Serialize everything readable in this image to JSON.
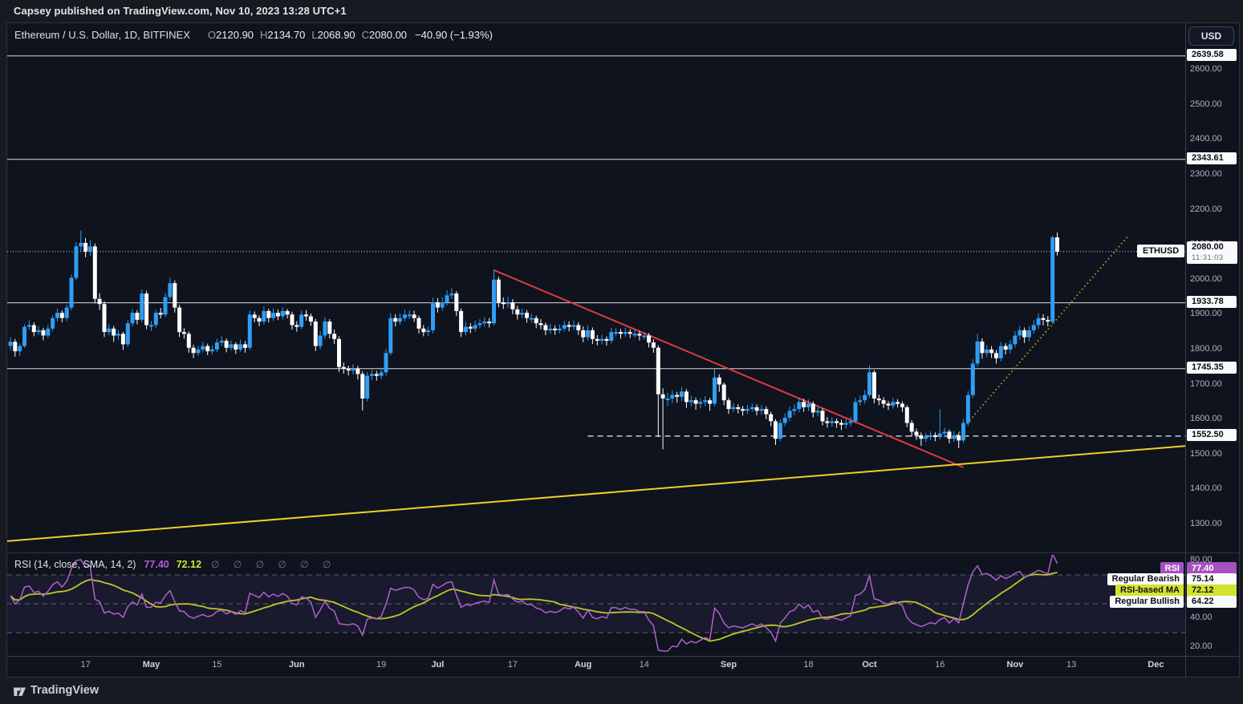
{
  "publisher_bar": {
    "text": "Capsey published on TradingView.com, Nov 10, 2023 13:28 UTC+1"
  },
  "footer": {
    "brand": "TradingView"
  },
  "symbol_legend": {
    "title": "Ethereum / U.S. Dollar, 1D, BITFINEX",
    "ohlc": [
      {
        "label": "O",
        "value": "2120.90"
      },
      {
        "label": "H",
        "value": "2134.70"
      },
      {
        "label": "L",
        "value": "2068.90"
      },
      {
        "label": "C",
        "value": "2080.00"
      }
    ],
    "change": "−40.90 (−1.93%)"
  },
  "rsi_legend": {
    "title": "RSI (14, close, SMA, 14, 2)",
    "rsi_value": "77.40",
    "ma_value": "72.12",
    "empty_marks": "∅ ∅ ∅ ∅ ∅ ∅"
  },
  "price_axis": {
    "currency": "USD",
    "scale_labels": [
      "2600.00",
      "2500.00",
      "2400.00",
      "2300.00",
      "2200.00",
      "2100.00",
      "2000.00",
      "1900.00",
      "1800.00",
      "1700.00",
      "1600.00",
      "1500.00",
      "1400.00",
      "1300.00"
    ],
    "level_tags": [
      "2639.58",
      "2343.61",
      "1933.78",
      "1745.35",
      "1552.50"
    ],
    "current": {
      "price": "2080.00",
      "countdown": "11:31:03"
    },
    "symbol_tag": "ETHUSD"
  },
  "rsi_axis": {
    "scale_labels": [
      "80.00",
      "40.00",
      "20.00"
    ],
    "tags": [
      {
        "name": "RSI",
        "value": "77.40",
        "type": "purple"
      },
      {
        "name": "Regular Bearish",
        "value": "75.14",
        "type": "white"
      },
      {
        "name": "RSI-based MA",
        "value": "72.12",
        "type": "lime"
      },
      {
        "name": "Regular Bullish",
        "value": "64.22",
        "type": "white"
      }
    ]
  },
  "time_axis": {
    "ticks": [
      {
        "d": 16,
        "label": "17"
      },
      {
        "d": 30,
        "label": "May"
      },
      {
        "d": 44,
        "label": "15"
      },
      {
        "d": 61,
        "label": "Jun"
      },
      {
        "d": 79,
        "label": "19"
      },
      {
        "d": 91,
        "label": "Jul"
      },
      {
        "d": 107,
        "label": "17"
      },
      {
        "d": 122,
        "label": "Aug"
      },
      {
        "d": 135,
        "label": "14"
      },
      {
        "d": 153,
        "label": "Sep"
      },
      {
        "d": 170,
        "label": "18"
      },
      {
        "d": 183,
        "label": "Oct"
      },
      {
        "d": 198,
        "label": "16"
      },
      {
        "d": 214,
        "label": "Nov"
      },
      {
        "d": 226,
        "label": "13"
      },
      {
        "d": 244,
        "label": "Dec"
      }
    ]
  },
  "chart_data": {
    "type": "candlestick",
    "symbol": "ETHUSD",
    "exchange": "BITFINEX",
    "interval": "1D",
    "first_candle_date": "2023-04-01",
    "last_candle_date": "2023-11-10",
    "price_axis_range_visible": [
      1222,
      2671
    ],
    "levels": [
      2639.58,
      2343.61,
      1933.78,
      1745.35
    ],
    "dashed_level": {
      "price": 1552.5,
      "from_d": 123
    },
    "current_price": 2080.0,
    "first_open": 1810,
    "note": "candles_hlc = [high, low, close] per day; open = previous close",
    "candles_hlc": [
      [
        1835,
        1797,
        1822
      ],
      [
        1830,
        1780,
        1795
      ],
      [
        1818,
        1782,
        1810
      ],
      [
        1872,
        1805,
        1865
      ],
      [
        1884,
        1856,
        1870
      ],
      [
        1878,
        1838,
        1850
      ],
      [
        1867,
        1842,
        1855
      ],
      [
        1862,
        1827,
        1840
      ],
      [
        1871,
        1833,
        1860
      ],
      [
        1898,
        1852,
        1890
      ],
      [
        1917,
        1880,
        1905
      ],
      [
        1912,
        1878,
        1890
      ],
      [
        1928,
        1882,
        1920
      ],
      [
        2015,
        1912,
        2005
      ],
      [
        2107,
        1998,
        2095
      ],
      [
        2140,
        2082,
        2105
      ],
      [
        2119,
        2064,
        2080
      ],
      [
        2112,
        2068,
        2095
      ],
      [
        2103,
        1932,
        1945
      ],
      [
        1961,
        1913,
        1930
      ],
      [
        1938,
        1836,
        1850
      ],
      [
        1874,
        1841,
        1860
      ],
      [
        1868,
        1822,
        1840
      ],
      [
        1856,
        1828,
        1845
      ],
      [
        1851,
        1799,
        1815
      ],
      [
        1884,
        1808,
        1875
      ],
      [
        1916,
        1866,
        1905
      ],
      [
        1913,
        1872,
        1885
      ],
      [
        1972,
        1878,
        1960
      ],
      [
        1968,
        1858,
        1870
      ],
      [
        1882,
        1853,
        1870
      ],
      [
        1914,
        1862,
        1905
      ],
      [
        1919,
        1889,
        1900
      ],
      [
        1962,
        1893,
        1950
      ],
      [
        2006,
        1941,
        1990
      ],
      [
        1998,
        1906,
        1920
      ],
      [
        1928,
        1836,
        1850
      ],
      [
        1861,
        1831,
        1845
      ],
      [
        1852,
        1791,
        1805
      ],
      [
        1814,
        1776,
        1790
      ],
      [
        1811,
        1782,
        1800
      ],
      [
        1822,
        1792,
        1810
      ],
      [
        1817,
        1784,
        1795
      ],
      [
        1812,
        1786,
        1800
      ],
      [
        1831,
        1793,
        1820
      ],
      [
        1838,
        1811,
        1825
      ],
      [
        1832,
        1792,
        1805
      ],
      [
        1826,
        1797,
        1815
      ],
      [
        1821,
        1788,
        1800
      ],
      [
        1828,
        1794,
        1815
      ],
      [
        1824,
        1791,
        1805
      ],
      [
        1912,
        1799,
        1900
      ],
      [
        1909,
        1878,
        1890
      ],
      [
        1898,
        1867,
        1880
      ],
      [
        1923,
        1872,
        1910
      ],
      [
        1917,
        1877,
        1890
      ],
      [
        1918,
        1882,
        1905
      ],
      [
        1914,
        1884,
        1895
      ],
      [
        1921,
        1886,
        1910
      ],
      [
        1916,
        1889,
        1900
      ],
      [
        1908,
        1857,
        1870
      ],
      [
        1881,
        1851,
        1865
      ],
      [
        1911,
        1858,
        1900
      ],
      [
        1913,
        1883,
        1895
      ],
      [
        1903,
        1868,
        1880
      ],
      [
        1888,
        1796,
        1810
      ],
      [
        1852,
        1801,
        1840
      ],
      [
        1892,
        1830,
        1880
      ],
      [
        1887,
        1832,
        1845
      ],
      [
        1857,
        1816,
        1830
      ],
      [
        1838,
        1736,
        1750
      ],
      [
        1763,
        1731,
        1745
      ],
      [
        1754,
        1726,
        1740
      ],
      [
        1758,
        1729,
        1745
      ],
      [
        1753,
        1714,
        1730
      ],
      [
        1738,
        1626,
        1660
      ],
      [
        1736,
        1652,
        1725
      ],
      [
        1742,
        1712,
        1730
      ],
      [
        1739,
        1711,
        1725
      ],
      [
        1748,
        1716,
        1735
      ],
      [
        1802,
        1726,
        1790
      ],
      [
        1904,
        1783,
        1890
      ],
      [
        1901,
        1866,
        1880
      ],
      [
        1903,
        1871,
        1890
      ],
      [
        1914,
        1881,
        1900
      ],
      [
        1912,
        1887,
        1900
      ],
      [
        1911,
        1879,
        1890
      ],
      [
        1897,
        1846,
        1860
      ],
      [
        1870,
        1838,
        1850
      ],
      [
        1866,
        1839,
        1855
      ],
      [
        1948,
        1847,
        1935
      ],
      [
        1947,
        1906,
        1920
      ],
      [
        1949,
        1911,
        1935
      ],
      [
        1969,
        1926,
        1955
      ],
      [
        1976,
        1945,
        1960
      ],
      [
        1967,
        1896,
        1910
      ],
      [
        1918,
        1836,
        1850
      ],
      [
        1879,
        1840,
        1865
      ],
      [
        1876,
        1847,
        1860
      ],
      [
        1883,
        1851,
        1870
      ],
      [
        1887,
        1860,
        1875
      ],
      [
        1893,
        1865,
        1880
      ],
      [
        1890,
        1863,
        1875
      ],
      [
        2029,
        1868,
        2000
      ],
      [
        2008,
        1921,
        1935
      ],
      [
        1949,
        1916,
        1930
      ],
      [
        1951,
        1919,
        1935
      ],
      [
        1944,
        1901,
        1915
      ],
      [
        1925,
        1886,
        1900
      ],
      [
        1917,
        1890,
        1905
      ],
      [
        1913,
        1877,
        1890
      ],
      [
        1903,
        1876,
        1890
      ],
      [
        1897,
        1861,
        1875
      ],
      [
        1887,
        1858,
        1870
      ],
      [
        1877,
        1841,
        1855
      ],
      [
        1873,
        1845,
        1860
      ],
      [
        1869,
        1842,
        1855
      ],
      [
        1872,
        1846,
        1860
      ],
      [
        1882,
        1851,
        1870
      ],
      [
        1881,
        1852,
        1865
      ],
      [
        1883,
        1856,
        1870
      ],
      [
        1878,
        1842,
        1855
      ],
      [
        1866,
        1821,
        1835
      ],
      [
        1869,
        1826,
        1855
      ],
      [
        1863,
        1816,
        1830
      ],
      [
        1841,
        1812,
        1825
      ],
      [
        1842,
        1814,
        1830
      ],
      [
        1838,
        1811,
        1825
      ],
      [
        1862,
        1817,
        1850
      ],
      [
        1861,
        1837,
        1850
      ],
      [
        1859,
        1831,
        1845
      ],
      [
        1863,
        1836,
        1850
      ],
      [
        1858,
        1833,
        1845
      ],
      [
        1856,
        1834,
        1845
      ],
      [
        1853,
        1826,
        1840
      ],
      [
        1851,
        1828,
        1840
      ],
      [
        1847,
        1806,
        1820
      ],
      [
        1829,
        1791,
        1805
      ],
      [
        1812,
        1550,
        1672
      ],
      [
        1689,
        1515,
        1660
      ],
      [
        1676,
        1639,
        1660
      ],
      [
        1684,
        1646,
        1670
      ],
      [
        1679,
        1648,
        1665
      ],
      [
        1693,
        1652,
        1680
      ],
      [
        1687,
        1633,
        1650
      ],
      [
        1668,
        1637,
        1655
      ],
      [
        1663,
        1628,
        1645
      ],
      [
        1661,
        1632,
        1650
      ],
      [
        1667,
        1638,
        1655
      ],
      [
        1662,
        1625,
        1645
      ],
      [
        1745,
        1638,
        1720
      ],
      [
        1729,
        1679,
        1700
      ],
      [
        1706,
        1641,
        1655
      ],
      [
        1662,
        1616,
        1630
      ],
      [
        1647,
        1621,
        1635
      ],
      [
        1643,
        1617,
        1630
      ],
      [
        1639,
        1611,
        1625
      ],
      [
        1642,
        1615,
        1630
      ],
      [
        1646,
        1622,
        1635
      ],
      [
        1643,
        1612,
        1625
      ],
      [
        1641,
        1614,
        1630
      ],
      [
        1638,
        1601,
        1615
      ],
      [
        1622,
        1581,
        1595
      ],
      [
        1601,
        1527,
        1545
      ],
      [
        1601,
        1538,
        1590
      ],
      [
        1618,
        1581,
        1605
      ],
      [
        1637,
        1596,
        1625
      ],
      [
        1643,
        1612,
        1630
      ],
      [
        1663,
        1621,
        1650
      ],
      [
        1659,
        1622,
        1635
      ],
      [
        1657,
        1624,
        1645
      ],
      [
        1652,
        1606,
        1620
      ],
      [
        1637,
        1609,
        1625
      ],
      [
        1632,
        1583,
        1595
      ],
      [
        1607,
        1577,
        1590
      ],
      [
        1606,
        1579,
        1595
      ],
      [
        1603,
        1576,
        1590
      ],
      [
        1599,
        1570,
        1585
      ],
      [
        1602,
        1574,
        1590
      ],
      [
        1608,
        1580,
        1595
      ],
      [
        1662,
        1588,
        1650
      ],
      [
        1668,
        1640,
        1655
      ],
      [
        1684,
        1645,
        1670
      ],
      [
        1755,
        1662,
        1735
      ],
      [
        1741,
        1646,
        1660
      ],
      [
        1671,
        1641,
        1655
      ],
      [
        1664,
        1633,
        1645
      ],
      [
        1653,
        1627,
        1640
      ],
      [
        1662,
        1631,
        1650
      ],
      [
        1658,
        1634,
        1645
      ],
      [
        1652,
        1622,
        1635
      ],
      [
        1641,
        1578,
        1590
      ],
      [
        1598,
        1551,
        1565
      ],
      [
        1574,
        1542,
        1555
      ],
      [
        1563,
        1525,
        1545
      ],
      [
        1562,
        1536,
        1550
      ],
      [
        1566,
        1541,
        1555
      ],
      [
        1563,
        1538,
        1550
      ],
      [
        1629,
        1543,
        1560
      ],
      [
        1577,
        1549,
        1565
      ],
      [
        1571,
        1532,
        1545
      ],
      [
        1567,
        1536,
        1555
      ],
      [
        1562,
        1518,
        1540
      ],
      [
        1601,
        1533,
        1590
      ],
      [
        1681,
        1582,
        1670
      ],
      [
        1772,
        1661,
        1760
      ],
      [
        1845,
        1751,
        1823
      ],
      [
        1832,
        1774,
        1790
      ],
      [
        1813,
        1779,
        1800
      ],
      [
        1810,
        1776,
        1790
      ],
      [
        1799,
        1760,
        1775
      ],
      [
        1822,
        1766,
        1810
      ],
      [
        1818,
        1786,
        1800
      ],
      [
        1827,
        1789,
        1815
      ],
      [
        1852,
        1806,
        1840
      ],
      [
        1868,
        1829,
        1855
      ],
      [
        1863,
        1819,
        1835
      ],
      [
        1867,
        1824,
        1855
      ],
      [
        1884,
        1846,
        1870
      ],
      [
        1904,
        1859,
        1890
      ],
      [
        1901,
        1869,
        1885
      ],
      [
        1896,
        1866,
        1880
      ],
      [
        2126,
        1874,
        2120.9
      ],
      [
        2134.7,
        2068.9,
        2080
      ]
    ],
    "trendlines": [
      {
        "name": "bearish-trendline",
        "color": "#e0393f",
        "style": "solid",
        "width": 2,
        "from": {
          "d": 103,
          "p": 2027
        },
        "to": {
          "d": 203,
          "p": 1463
        }
      },
      {
        "name": "long-term-support",
        "color": "#f0d023",
        "style": "solid",
        "width": 2,
        "from": {
          "d": -1,
          "p": 1252
        },
        "to": {
          "d": 262,
          "p": 1537
        }
      },
      {
        "name": "bullish-trendline",
        "color": "#a4a018",
        "style": "dotted",
        "width": 2,
        "from": {
          "d": 201,
          "p": 1545
        },
        "to": {
          "d": 238,
          "p": 2123
        }
      }
    ],
    "rsi": {
      "period": 14,
      "source": "close",
      "ma_type": "SMA",
      "ma_period": 14,
      "levels": [
        70,
        50,
        30
      ],
      "last_rsi": 77.4,
      "last_ma": 72.12,
      "seed_avg_gain": 10,
      "seed_avg_loss": 8
    },
    "colors": {
      "up": "#2f9ef5",
      "down": "#ffffff",
      "rsi_line": "#b060cc",
      "rsi_ma_line": "#bcc926",
      "level_line": "#eceef2",
      "rsi_band": "rgba(130,90,200,0.10)",
      "tag_purple": "#a750c0",
      "tag_lime": "#d3e32e"
    }
  }
}
